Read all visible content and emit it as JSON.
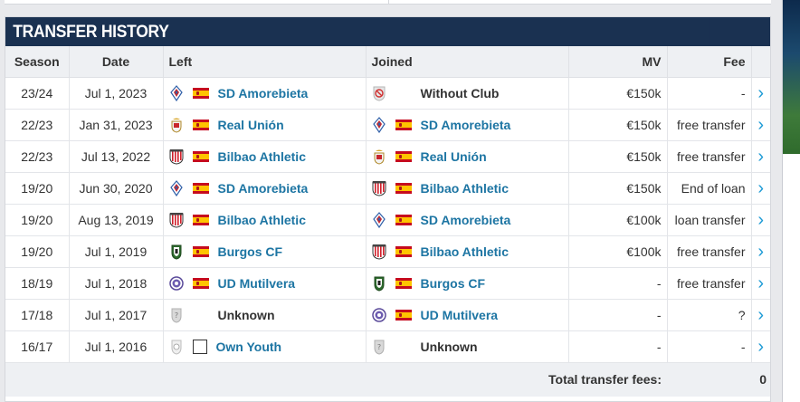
{
  "section": {
    "title": "TRANSFER HISTORY"
  },
  "columns": {
    "season": "Season",
    "date": "Date",
    "left": "Left",
    "joined": "Joined",
    "mv": "MV",
    "fee": "Fee"
  },
  "rows": [
    {
      "season": "23/24",
      "date": "Jul 1, 2023",
      "left": {
        "club": "SD Amorebieta",
        "crest": "amorebieta-crest-icon",
        "flag": "spain-flag-icon",
        "link": true
      },
      "joined": {
        "club": "Without Club",
        "crest": "without-club-icon",
        "flag": "",
        "link": false
      },
      "mv": "€150k",
      "fee": "-"
    },
    {
      "season": "22/23",
      "date": "Jan 31, 2023",
      "left": {
        "club": "Real Unión",
        "crest": "real-union-crest-icon",
        "flag": "spain-flag-icon",
        "link": true
      },
      "joined": {
        "club": "SD Amorebieta",
        "crest": "amorebieta-crest-icon",
        "flag": "spain-flag-icon",
        "link": true
      },
      "mv": "€150k",
      "fee": "free transfer"
    },
    {
      "season": "22/23",
      "date": "Jul 13, 2022",
      "left": {
        "club": "Bilbao Athletic",
        "crest": "bilbao-athletic-crest-icon",
        "flag": "spain-flag-icon",
        "link": true
      },
      "joined": {
        "club": "Real Unión",
        "crest": "real-union-crest-icon",
        "flag": "spain-flag-icon",
        "link": true
      },
      "mv": "€150k",
      "fee": "free transfer"
    },
    {
      "season": "19/20",
      "date": "Jun 30, 2020",
      "left": {
        "club": "SD Amorebieta",
        "crest": "amorebieta-crest-icon",
        "flag": "spain-flag-icon",
        "link": true
      },
      "joined": {
        "club": "Bilbao Athletic",
        "crest": "bilbao-athletic-crest-icon",
        "flag": "spain-flag-icon",
        "link": true
      },
      "mv": "€150k",
      "fee": "End of loan"
    },
    {
      "season": "19/20",
      "date": "Aug 13, 2019",
      "left": {
        "club": "Bilbao Athletic",
        "crest": "bilbao-athletic-crest-icon",
        "flag": "spain-flag-icon",
        "link": true
      },
      "joined": {
        "club": "SD Amorebieta",
        "crest": "amorebieta-crest-icon",
        "flag": "spain-flag-icon",
        "link": true
      },
      "mv": "€100k",
      "fee": "loan transfer"
    },
    {
      "season": "19/20",
      "date": "Jul 1, 2019",
      "left": {
        "club": "Burgos CF",
        "crest": "burgos-crest-icon",
        "flag": "spain-flag-icon",
        "link": true
      },
      "joined": {
        "club": "Bilbao Athletic",
        "crest": "bilbao-athletic-crest-icon",
        "flag": "spain-flag-icon",
        "link": true
      },
      "mv": "€100k",
      "fee": "free transfer"
    },
    {
      "season": "18/19",
      "date": "Jul 1, 2018",
      "left": {
        "club": "UD Mutilvera",
        "crest": "mutilvera-crest-icon",
        "flag": "spain-flag-icon",
        "link": true
      },
      "joined": {
        "club": "Burgos CF",
        "crest": "burgos-crest-icon",
        "flag": "spain-flag-icon",
        "link": true
      },
      "mv": "-",
      "fee": "free transfer"
    },
    {
      "season": "17/18",
      "date": "Jul 1, 2017",
      "left": {
        "club": "Unknown",
        "crest": "unknown-club-icon",
        "flag": "",
        "link": false
      },
      "joined": {
        "club": "UD Mutilvera",
        "crest": "mutilvera-crest-icon",
        "flag": "spain-flag-icon",
        "link": true
      },
      "mv": "-",
      "fee": "?"
    },
    {
      "season": "16/17",
      "date": "Jul 1, 2016",
      "left": {
        "club": "Own Youth",
        "crest": "own-youth-icon",
        "flag": "no-flag-icon",
        "link": true
      },
      "joined": {
        "club": "Unknown",
        "crest": "unknown-club-icon",
        "flag": "",
        "link": false
      },
      "mv": "-",
      "fee": "-"
    }
  ],
  "footer": {
    "label": "Total transfer fees:",
    "value": "0"
  },
  "icons": {
    "row_arrow": "chevron-right-icon"
  },
  "colors": {
    "header_bg": "#1a3151",
    "link": "#1d75a3",
    "arrow": "#1d9bd6",
    "th_bg": "#eef0f3"
  }
}
